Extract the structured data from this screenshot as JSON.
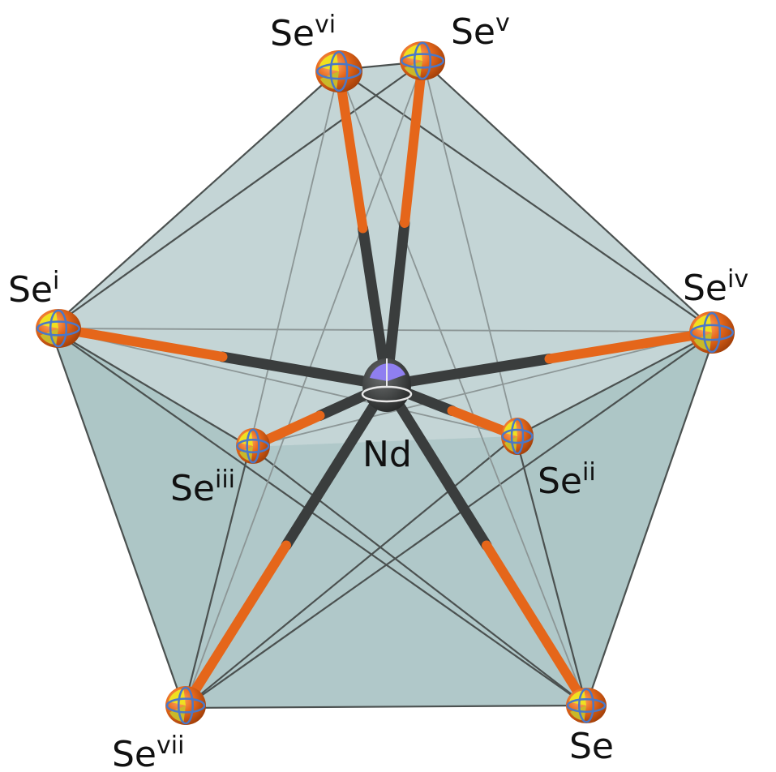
{
  "diagram": {
    "center_atom": {
      "label": "Nd",
      "color": "#8f7ff0"
    },
    "ligands": [
      {
        "id": "Se",
        "base": "Se",
        "sup": ""
      },
      {
        "id": "Se_i",
        "base": "Se",
        "sup": "i"
      },
      {
        "id": "Se_ii",
        "base": "Se",
        "sup": "ii"
      },
      {
        "id": "Se_iii",
        "base": "Se",
        "sup": "iii"
      },
      {
        "id": "Se_iv",
        "base": "Se",
        "sup": "iv"
      },
      {
        "id": "Se_v",
        "base": "Se",
        "sup": "v"
      },
      {
        "id": "Se_vi",
        "base": "Se",
        "sup": "vi"
      },
      {
        "id": "Se_vii",
        "base": "Se",
        "sup": "vii"
      }
    ],
    "colors": {
      "polyhedron_fill": "#a9c3c3",
      "polyhedron_back": "#c9dadb",
      "edge": "#4b5150",
      "bond_se_half": "#e5661a",
      "bond_nd_half": "#3a3d3d",
      "se_atom": "#e8691c",
      "se_octant": "#f0e020",
      "ellipsoid_outline": "#4a78c8"
    }
  }
}
